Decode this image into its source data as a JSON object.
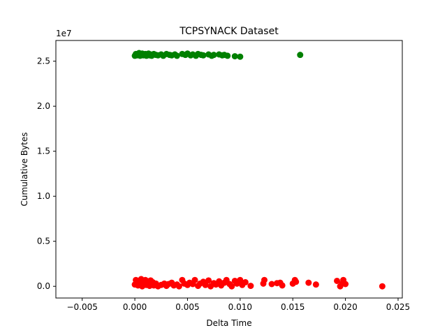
{
  "chart_data": {
    "type": "scatter",
    "title": "TCPSYNACK Dataset",
    "xlabel": "Delta Time",
    "ylabel": "Cumulative Bytes",
    "y_offset_text": "1e7",
    "xlim": [
      -0.0075,
      0.0254
    ],
    "ylim": [
      -1300000,
      27300000
    ],
    "x_ticks": [
      -0.005,
      0.0,
      0.005,
      0.01,
      0.015,
      0.02,
      0.025
    ],
    "x_tick_labels": [
      "−0.005",
      "0.000",
      "0.005",
      "0.010",
      "0.015",
      "0.020",
      "0.025"
    ],
    "y_ticks": [
      0,
      5000000,
      10000000,
      15000000,
      20000000,
      25000000
    ],
    "y_tick_labels": [
      "0.0",
      "0.5",
      "1.0",
      "1.5",
      "2.0",
      "2.5"
    ],
    "grid": false,
    "series": [
      {
        "color": "#008000",
        "points": [
          [
            0.0,
            25600000
          ],
          [
            0.0001,
            25800000
          ],
          [
            0.0002,
            25650000
          ],
          [
            0.0003,
            25750000
          ],
          [
            0.0004,
            25900000
          ],
          [
            0.0005,
            25600000
          ],
          [
            0.0006,
            25700000
          ],
          [
            0.0007,
            25850000
          ],
          [
            0.0008,
            25650000
          ],
          [
            0.0009,
            25750000
          ],
          [
            0.001,
            25800000
          ],
          [
            0.0011,
            25600000
          ],
          [
            0.0012,
            25700000
          ],
          [
            0.0013,
            25850000
          ],
          [
            0.0014,
            25650000
          ],
          [
            0.0015,
            25750000
          ],
          [
            0.0016,
            25600000
          ],
          [
            0.0018,
            25800000
          ],
          [
            0.002,
            25700000
          ],
          [
            0.0022,
            25650000
          ],
          [
            0.0025,
            25750000
          ],
          [
            0.0027,
            25600000
          ],
          [
            0.003,
            25800000
          ],
          [
            0.0033,
            25700000
          ],
          [
            0.0035,
            25650000
          ],
          [
            0.0038,
            25750000
          ],
          [
            0.004,
            25600000
          ],
          [
            0.0045,
            25800000
          ],
          [
            0.0048,
            25700000
          ],
          [
            0.005,
            25850000
          ],
          [
            0.0053,
            25650000
          ],
          [
            0.0055,
            25750000
          ],
          [
            0.0058,
            25600000
          ],
          [
            0.006,
            25800000
          ],
          [
            0.0063,
            25700000
          ],
          [
            0.0065,
            25650000
          ],
          [
            0.007,
            25750000
          ],
          [
            0.0073,
            25600000
          ],
          [
            0.0075,
            25700000
          ],
          [
            0.008,
            25750000
          ],
          [
            0.0083,
            25650000
          ],
          [
            0.0085,
            25700000
          ],
          [
            0.0088,
            25600000
          ],
          [
            0.0095,
            25550000
          ],
          [
            0.01,
            25500000
          ],
          [
            0.0157,
            25700000
          ]
        ]
      },
      {
        "color": "#ff0000",
        "points": [
          [
            0.0,
            200000
          ],
          [
            0.0001,
            700000
          ],
          [
            0.0002,
            400000
          ],
          [
            0.0003,
            100000
          ],
          [
            0.0004,
            600000
          ],
          [
            0.0005,
            300000
          ],
          [
            0.0006,
            800000
          ],
          [
            0.0007,
            0
          ],
          [
            0.0008,
            500000
          ],
          [
            0.0009,
            250000
          ],
          [
            0.001,
            700000
          ],
          [
            0.0011,
            150000
          ],
          [
            0.0012,
            550000
          ],
          [
            0.0013,
            350000
          ],
          [
            0.0014,
            50000
          ],
          [
            0.0015,
            650000
          ],
          [
            0.0016,
            200000
          ],
          [
            0.0017,
            450000
          ],
          [
            0.0018,
            100000
          ],
          [
            0.002,
            300000
          ],
          [
            0.0022,
            0
          ],
          [
            0.0025,
            150000
          ],
          [
            0.0028,
            300000
          ],
          [
            0.003,
            50000
          ],
          [
            0.0032,
            250000
          ],
          [
            0.0035,
            400000
          ],
          [
            0.0037,
            100000
          ],
          [
            0.004,
            200000
          ],
          [
            0.0042,
            0
          ],
          [
            0.0045,
            700000
          ],
          [
            0.0047,
            300000
          ],
          [
            0.005,
            150000
          ],
          [
            0.0052,
            400000
          ],
          [
            0.0055,
            250000
          ],
          [
            0.0057,
            700000
          ],
          [
            0.006,
            50000
          ],
          [
            0.0062,
            300000
          ],
          [
            0.0065,
            500000
          ],
          [
            0.0067,
            150000
          ],
          [
            0.007,
            650000
          ],
          [
            0.0072,
            0
          ],
          [
            0.0075,
            350000
          ],
          [
            0.0077,
            200000
          ],
          [
            0.008,
            550000
          ],
          [
            0.0082,
            100000
          ],
          [
            0.0085,
            400000
          ],
          [
            0.0087,
            700000
          ],
          [
            0.009,
            250000
          ],
          [
            0.0092,
            0
          ],
          [
            0.0095,
            600000
          ],
          [
            0.0097,
            300000
          ],
          [
            0.01,
            700000
          ],
          [
            0.0102,
            150000
          ],
          [
            0.0105,
            450000
          ],
          [
            0.011,
            50000
          ],
          [
            0.0122,
            300000
          ],
          [
            0.0123,
            700000
          ],
          [
            0.013,
            250000
          ],
          [
            0.0135,
            350000
          ],
          [
            0.0138,
            400000
          ],
          [
            0.014,
            100000
          ],
          [
            0.015,
            300000
          ],
          [
            0.0152,
            700000
          ],
          [
            0.0153,
            500000
          ],
          [
            0.0165,
            400000
          ],
          [
            0.0172,
            200000
          ],
          [
            0.0192,
            600000
          ],
          [
            0.0195,
            0
          ],
          [
            0.0197,
            300000
          ],
          [
            0.0198,
            700000
          ],
          [
            0.02,
            250000
          ],
          [
            0.0235,
            0
          ]
        ]
      }
    ]
  }
}
